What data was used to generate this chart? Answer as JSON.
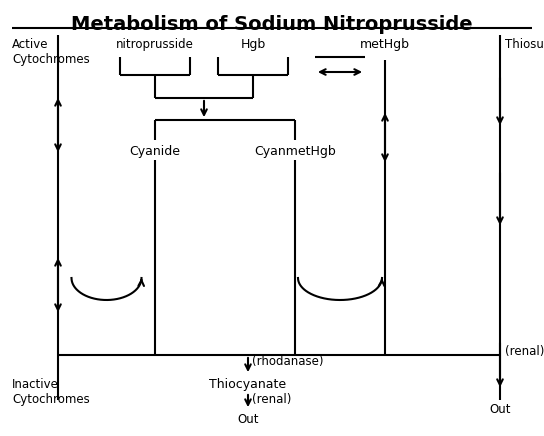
{
  "title": "Metabolism of Sodium Nitroprusside",
  "background": "#ffffff",
  "labels": {
    "active_cytochromes": "Active\nCytochromes",
    "inactive_cytochromes": "Inactive\nCytochromes",
    "nitroprusside": "nitroprusside",
    "hgb": "Hgb",
    "methgb": "metHgb",
    "thiosulfate": "Thiosulfate",
    "cyanide": "Cyanide",
    "cyanmethgb": "CyanmetHgb",
    "rhodanase": "(rhodanase)",
    "thiocyanate": "Thiocyanate",
    "renal1": "(renal)",
    "renal2": "(renal)",
    "out1": "Out",
    "out2": "Out"
  }
}
